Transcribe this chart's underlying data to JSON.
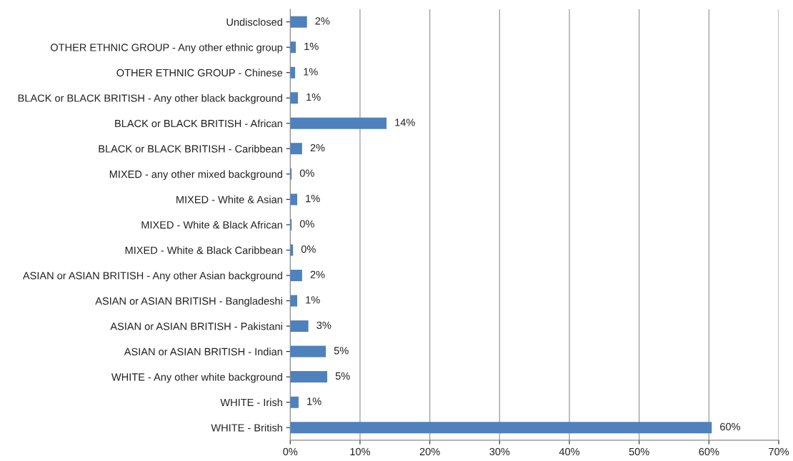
{
  "chart_data": {
    "type": "bar",
    "orientation": "horizontal",
    "categories": [
      "Undisclosed",
      "OTHER ETHNIC GROUP - Any other ethnic group",
      "OTHER ETHNIC GROUP - Chinese",
      "BLACK or BLACK BRITISH - Any other black background",
      "BLACK or BLACK BRITISH - African",
      "BLACK or BLACK BRITISH - Caribbean",
      "MIXED - any other mixed background",
      "MIXED - White & Asian",
      "MIXED - White & Black African",
      "MIXED - White & Black Caribbean",
      "ASIAN or ASIAN BRITISH - Any other Asian background",
      "ASIAN or ASIAN BRITISH - Bangladeshi",
      "ASIAN or ASIAN BRITISH - Pakistani",
      "ASIAN or ASIAN BRITISH - Indian",
      "WHITE - Any other white background",
      "WHITE - Irish",
      "WHITE - British"
    ],
    "values": [
      2.4,
      0.8,
      0.7,
      1.1,
      13.8,
      1.7,
      0.2,
      1.0,
      0.2,
      0.4,
      1.7,
      1.0,
      2.6,
      5.1,
      5.3,
      1.2,
      60.4
    ],
    "value_labels": [
      "2%",
      "1%",
      "1%",
      "1%",
      "14%",
      "2%",
      "0%",
      "1%",
      "0%",
      "0%",
      "2%",
      "1%",
      "3%",
      "5%",
      "5%",
      "1%",
      "60%"
    ],
    "color": "#4f81bd",
    "xlim": [
      0,
      70
    ],
    "xticks": [
      {
        "value": 0,
        "label": "0%"
      },
      {
        "value": 10,
        "label": "10%"
      },
      {
        "value": 20,
        "label": "20%"
      },
      {
        "value": 30,
        "label": "30%"
      },
      {
        "value": 40,
        "label": "40%"
      },
      {
        "value": 50,
        "label": "50%"
      },
      {
        "value": 60,
        "label": "60%"
      },
      {
        "value": 70,
        "label": "70%"
      }
    ],
    "grid": "x"
  }
}
